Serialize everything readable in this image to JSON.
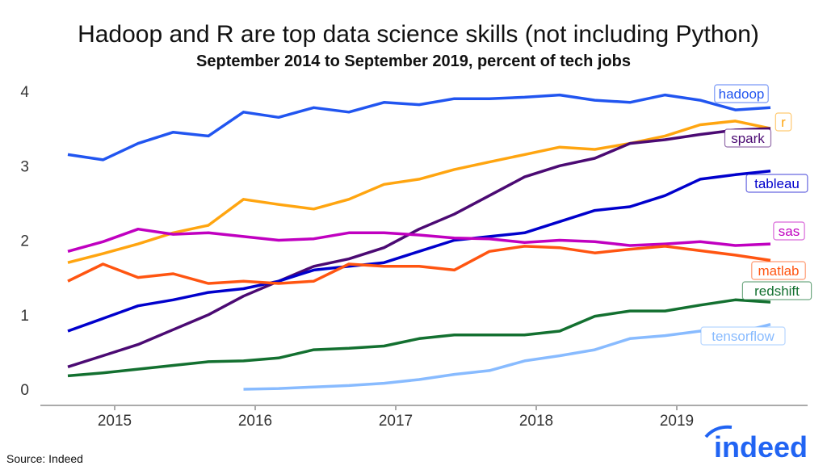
{
  "chart_data": {
    "type": "line",
    "title": "Hadoop and R are top data science skills (not including Python)",
    "subtitle": "September 2014 to September 2019, percent of tech jobs",
    "xlabel": "",
    "ylabel": "",
    "ylim": [
      0,
      4
    ],
    "yticks": [
      "0",
      "1",
      "2",
      "3",
      "4"
    ],
    "xticks": [
      "2015",
      "2016",
      "2017",
      "2018",
      "2019"
    ],
    "grid": false,
    "legend": "direct labels at line ends",
    "x": [
      "2014-09",
      "2014-12",
      "2015-03",
      "2015-06",
      "2015-09",
      "2015-12",
      "2016-03",
      "2016-06",
      "2016-09",
      "2016-12",
      "2017-03",
      "2017-06",
      "2017-09",
      "2017-12",
      "2018-03",
      "2018-06",
      "2018-09",
      "2018-12",
      "2019-03",
      "2019-06",
      "2019-09"
    ],
    "series": [
      {
        "name": "hadoop",
        "color": "#2155f0",
        "values": [
          3.15,
          3.08,
          3.3,
          3.45,
          3.4,
          3.72,
          3.65,
          3.78,
          3.72,
          3.85,
          3.82,
          3.9,
          3.9,
          3.92,
          3.95,
          3.88,
          3.85,
          3.95,
          3.88,
          3.75,
          3.78
        ]
      },
      {
        "name": "r",
        "color": "#ffa510",
        "values": [
          1.7,
          1.82,
          1.95,
          2.1,
          2.2,
          2.55,
          2.48,
          2.42,
          2.55,
          2.75,
          2.82,
          2.95,
          3.05,
          3.15,
          3.25,
          3.22,
          3.3,
          3.4,
          3.55,
          3.6,
          3.5
        ]
      },
      {
        "name": "spark",
        "color": "#4b0a73",
        "values": [
          0.3,
          0.45,
          0.6,
          0.8,
          1.0,
          1.25,
          1.45,
          1.65,
          1.75,
          1.9,
          2.15,
          2.35,
          2.6,
          2.85,
          3.0,
          3.1,
          3.3,
          3.35,
          3.42,
          3.48,
          3.5
        ]
      },
      {
        "name": "tableau",
        "color": "#0000cc",
        "values": [
          0.78,
          0.95,
          1.12,
          1.2,
          1.3,
          1.35,
          1.45,
          1.6,
          1.65,
          1.7,
          1.85,
          2.0,
          2.05,
          2.1,
          2.25,
          2.4,
          2.45,
          2.6,
          2.82,
          2.88,
          2.93
        ]
      },
      {
        "name": "sas",
        "color": "#c000c0",
        "values": [
          1.85,
          1.98,
          2.15,
          2.08,
          2.1,
          2.05,
          2.0,
          2.02,
          2.1,
          2.1,
          2.07,
          2.03,
          2.02,
          1.97,
          2.0,
          1.98,
          1.93,
          1.95,
          1.98,
          1.93,
          1.95
        ]
      },
      {
        "name": "matlab",
        "color": "#ff5511",
        "values": [
          1.45,
          1.68,
          1.5,
          1.55,
          1.42,
          1.45,
          1.42,
          1.45,
          1.68,
          1.65,
          1.65,
          1.6,
          1.85,
          1.92,
          1.9,
          1.83,
          1.88,
          1.92,
          1.86,
          1.8,
          1.73
        ]
      },
      {
        "name": "redshift",
        "color": "#137030",
        "values": [
          0.18,
          0.22,
          0.27,
          0.32,
          0.37,
          0.38,
          0.42,
          0.53,
          0.55,
          0.58,
          0.68,
          0.73,
          0.73,
          0.73,
          0.78,
          0.98,
          1.05,
          1.05,
          1.13,
          1.2,
          1.17
        ]
      },
      {
        "name": "tensorflow",
        "color": "#88bbff",
        "values": [
          null,
          null,
          null,
          null,
          null,
          0.0,
          0.01,
          0.03,
          0.05,
          0.08,
          0.13,
          0.2,
          0.25,
          0.38,
          0.45,
          0.53,
          0.68,
          0.72,
          0.78,
          0.75,
          0.87
        ]
      }
    ]
  },
  "source": "Source: Indeed",
  "logo": {
    "text": "indeed",
    "color": "#2164f3"
  }
}
